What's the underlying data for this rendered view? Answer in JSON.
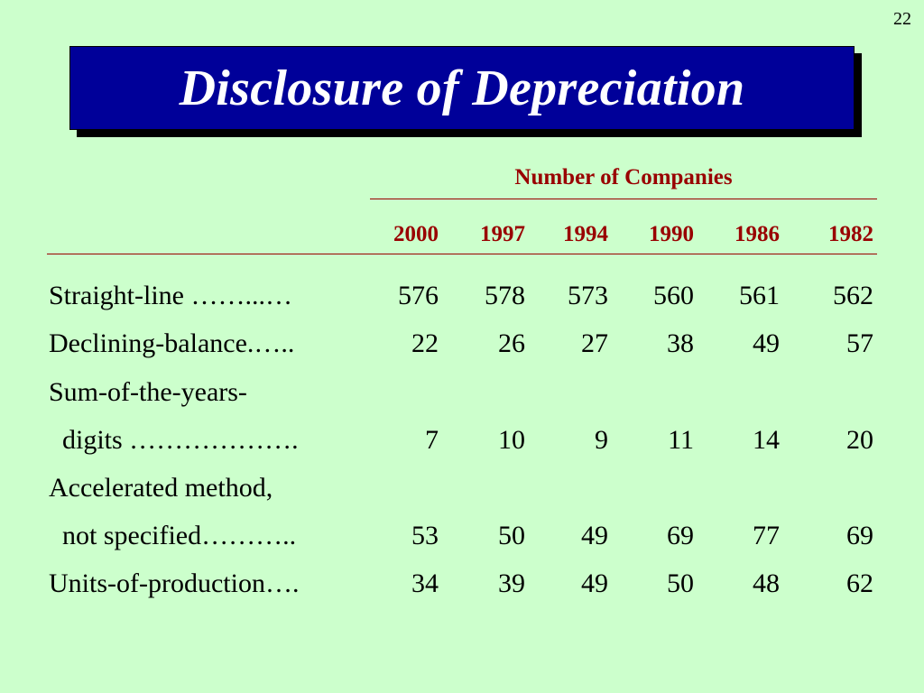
{
  "slide_number": "22",
  "title": "Disclosure of Depreciation",
  "header_label": "Number of Companies",
  "years": [
    "2000",
    "1997",
    "1994",
    "1990",
    "1986",
    "1982"
  ],
  "rows": [
    {
      "label": "Straight-line ……...…",
      "values": [
        "576",
        "578",
        "573",
        "560",
        "561",
        "562"
      ]
    },
    {
      "label": "Declining-balance.…..",
      "values": [
        "22",
        "26",
        "27",
        "38",
        "49",
        "57"
      ]
    },
    {
      "label": "Sum-of-the-years-",
      "values": [
        "",
        "",
        "",
        "",
        "",
        ""
      ]
    },
    {
      "label": "  digits ……………….",
      "values": [
        "7",
        "10",
        "9",
        "11",
        "14",
        "20"
      ]
    },
    {
      "label": "Accelerated method,",
      "values": [
        "",
        "",
        "",
        "",
        "",
        ""
      ]
    },
    {
      "label": "  not specified………..",
      "values": [
        "53",
        "50",
        "49",
        "69",
        "77",
        "69"
      ]
    },
    {
      "label": "Units-of-production….",
      "values": [
        "34",
        "39",
        "49",
        "50",
        "48",
        "62"
      ]
    }
  ],
  "colors": {
    "background": "#ccffcc",
    "title_box": "#000099",
    "accent": "#990000"
  }
}
